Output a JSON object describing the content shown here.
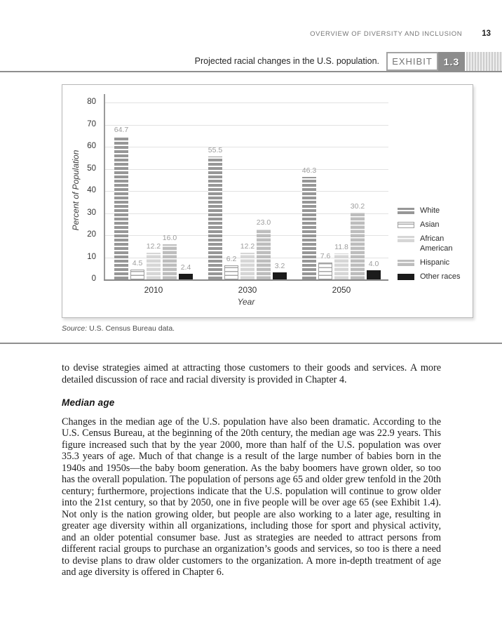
{
  "page": {
    "running_header": {
      "title": "OVERVIEW OF DIVERSITY AND INCLUSION",
      "page_number": "13"
    },
    "exhibit": {
      "caption": "Projected racial changes in the U.S. population.",
      "label": "EXHIBIT",
      "number": "1.3",
      "number_box_color": "#8d8d8d"
    },
    "source_note": {
      "prefix": "Source:",
      "text": " U.S. Census Bureau data."
    },
    "body": {
      "paragraph_1": "to devise strategies aimed at attracting those customers to their goods and services. A more detailed discussion of race and racial diversity is provided in Chapter 4.",
      "section_heading": "Median age",
      "paragraph_2": "Changes in the median age of the U.S. population have also been dramatic. According to the U.S. Census Bureau, at the beginning of the 20th century, the median age was 22.9 years. This figure increased such that by the year 2000, more than half of the U.S. population was over 35.3 years of age. Much of that change is a result of the large number of babies born in the 1940s and 1950s—the baby boom generation. As the baby boomers have grown older, so too has the overall population. The population of persons age 65 and older grew tenfold in the 20th century; furthermore, projections indicate that the U.S. population will continue to grow older into the 21st century, so that by 2050, one in five people will be over age 65 (see Exhibit 1.4). Not only is the nation growing older, but people are also working to a later age, resulting in greater age diversity within all organizations, including those for sport and physical activity, and an older potential consumer base. Just as strategies are needed to attract persons from different racial groups to purchase an organization’s goods and services, so too is there a need to devise plans to draw older customers to the organization. A more in-depth treatment of age and age diversity is offered in Chapter 6."
    }
  },
  "chart_data": {
    "type": "bar",
    "title": "Projected racial changes in the U.S. population.",
    "categories": [
      "2010",
      "2030",
      "2050"
    ],
    "series": [
      {
        "name": "White",
        "values": [
          64.7,
          55.5,
          46.3
        ],
        "color": "#979797",
        "pattern": "horizontal-stripes"
      },
      {
        "name": "Asian",
        "values": [
          4.5,
          6.2,
          7.6
        ],
        "color": "#ffffff",
        "pattern": "white-bricks-outlined"
      },
      {
        "name": "African American",
        "values": [
          12.2,
          12.2,
          11.8
        ],
        "color": "#d6d6d6",
        "pattern": "horizontal-stripes"
      },
      {
        "name": "Hispanic",
        "values": [
          16.0,
          23.0,
          30.2
        ],
        "color": "#bdbdbd",
        "pattern": "horizontal-stripes"
      },
      {
        "name": "Other races",
        "values": [
          2.4,
          3.2,
          4.0
        ],
        "color": "#1b1b1b",
        "pattern": "solid"
      }
    ],
    "xlabel": "Year",
    "ylabel": "Percent of Population",
    "ylim": [
      0,
      80
    ],
    "yticks": [
      0,
      10,
      20,
      30,
      40,
      50,
      60,
      70,
      80
    ],
    "grid": true,
    "legend_position": "right-inside",
    "value_labels": true
  }
}
